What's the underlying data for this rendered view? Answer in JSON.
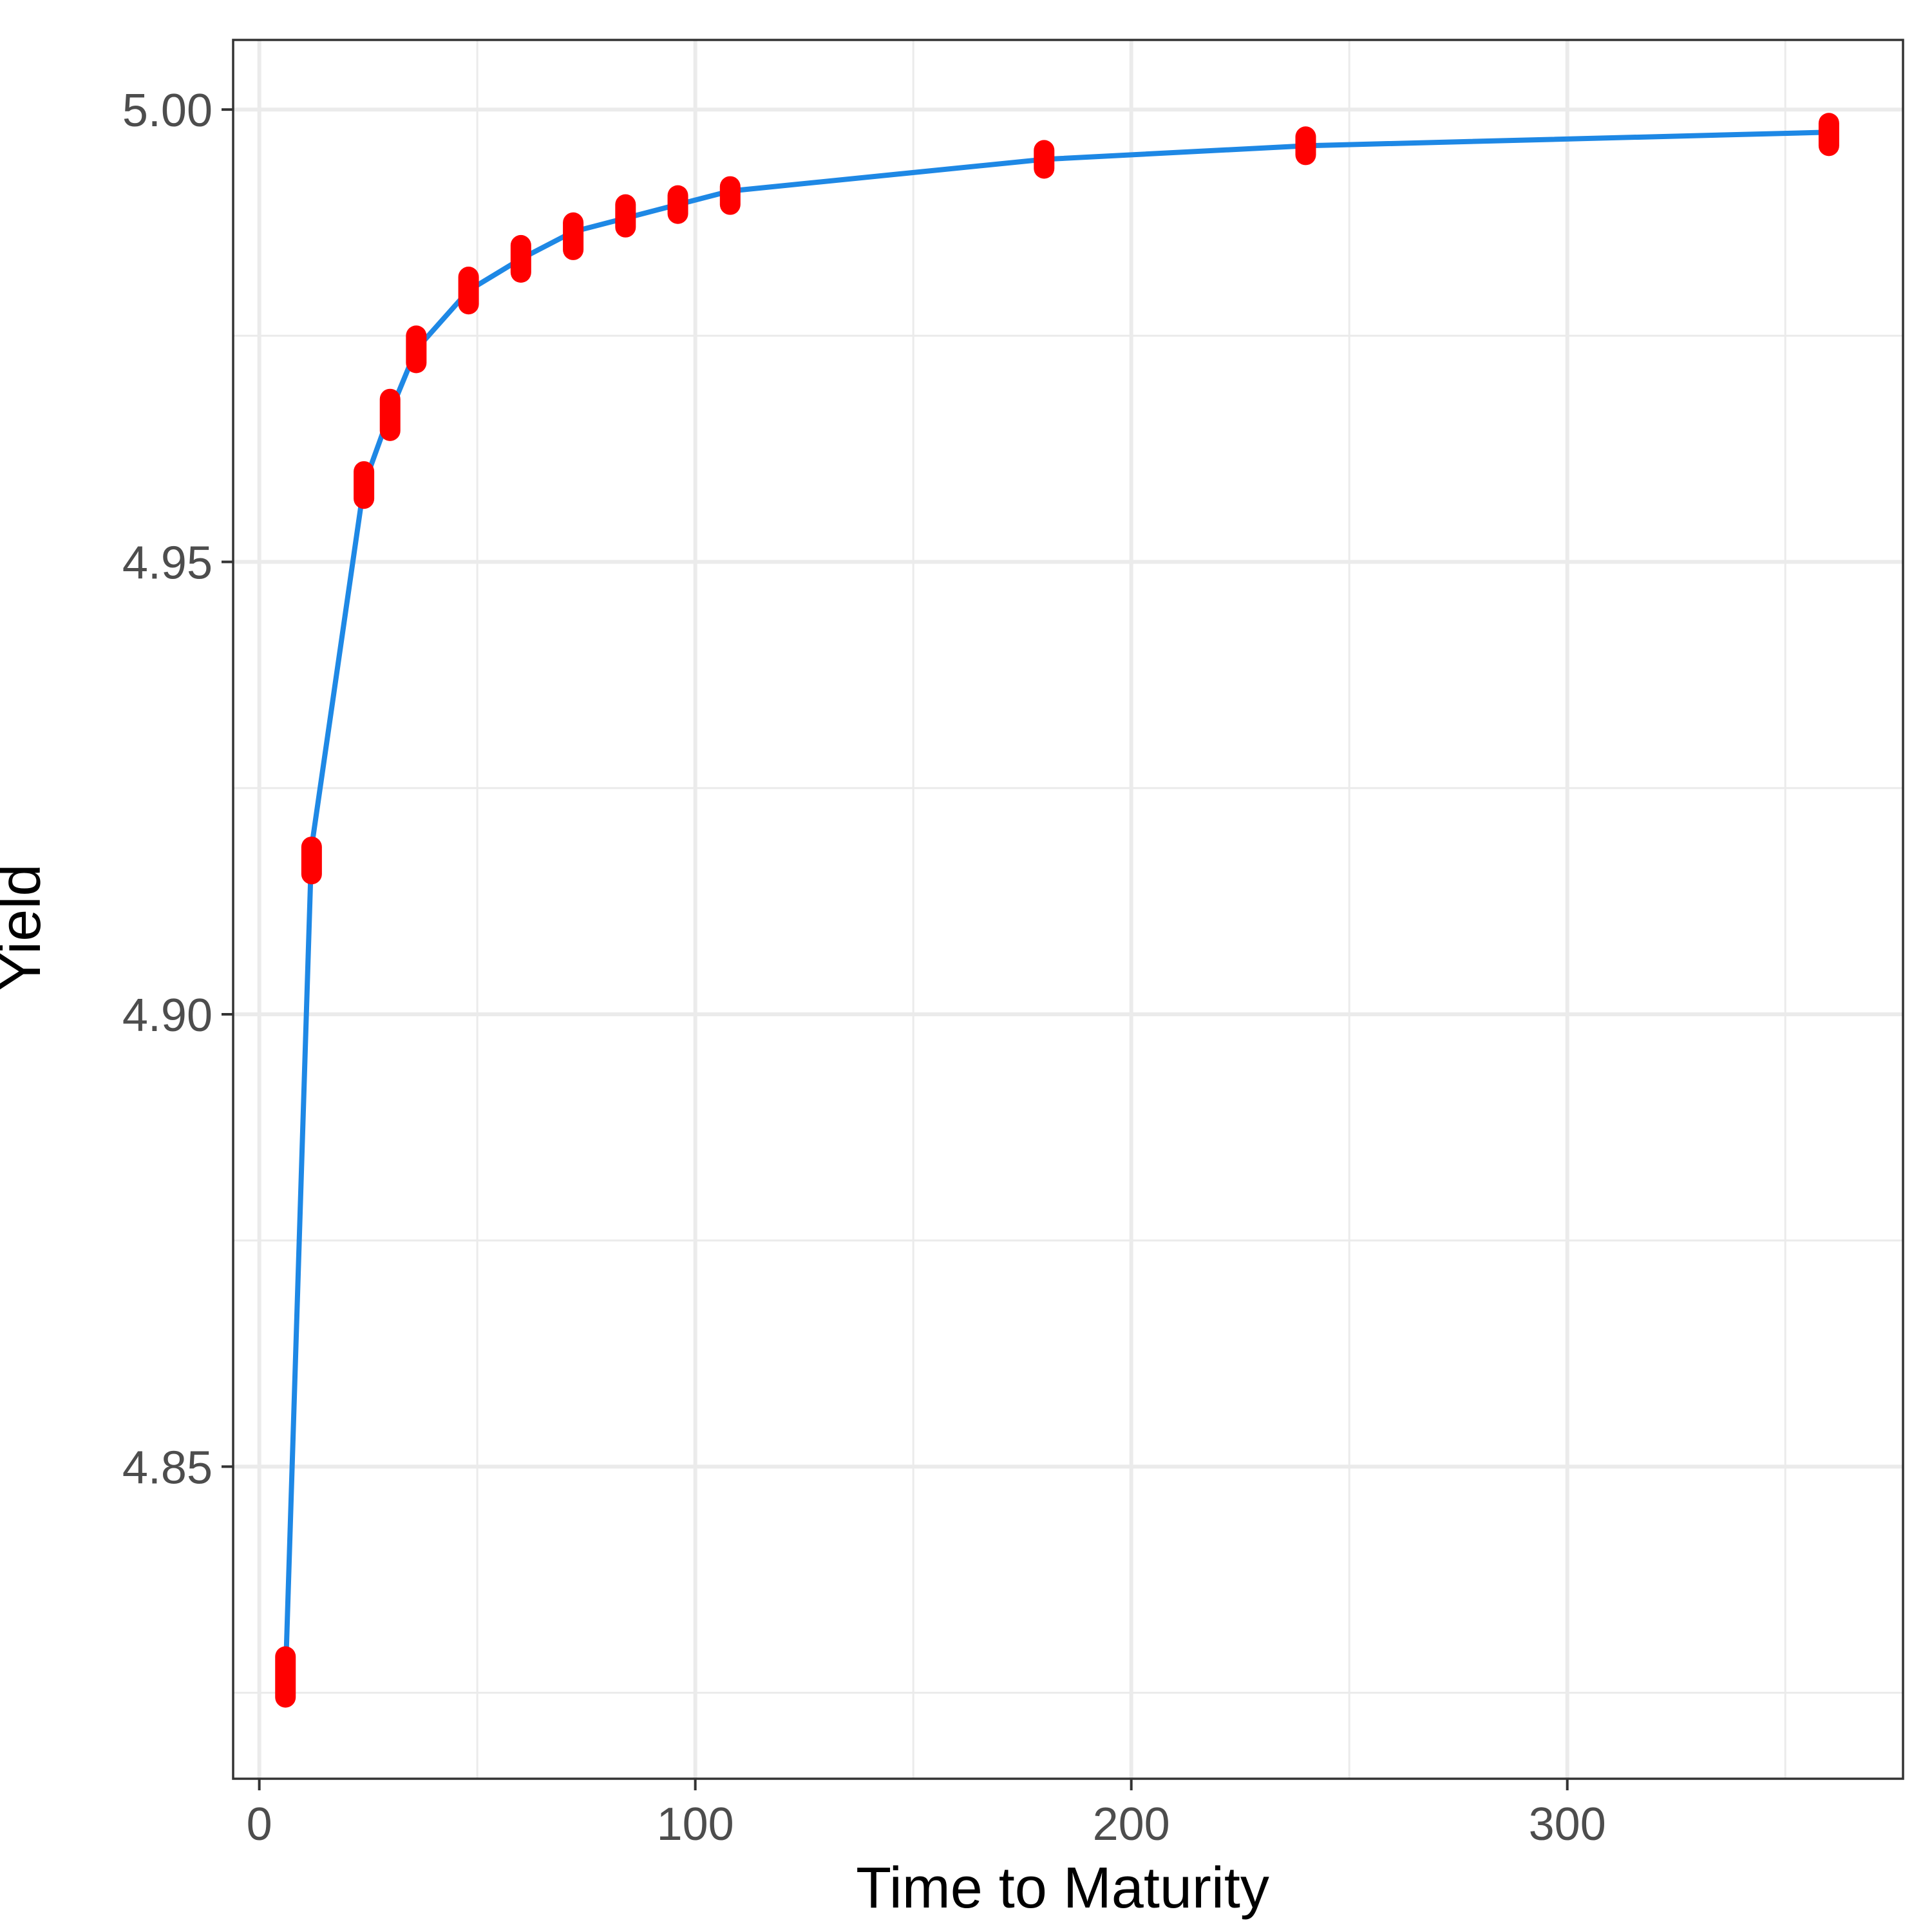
{
  "chart_data": {
    "type": "line",
    "title": "",
    "xlabel": "Time to Maturity",
    "ylabel": "Yield",
    "xlim": [
      -6,
      377
    ],
    "ylim": [
      4.8155,
      5.0077
    ],
    "x_ticks": [
      0,
      100,
      200,
      300
    ],
    "x_tick_labels": [
      "0",
      "100",
      "200",
      "300"
    ],
    "y_ticks": [
      4.85,
      4.9,
      4.95,
      5.0
    ],
    "y_tick_labels": [
      "4.85",
      "4.90",
      "4.95",
      "5.00"
    ],
    "grid": true,
    "line_color": "#1E88E5",
    "point_color": "#FF0000",
    "series": [
      {
        "type": "line",
        "x": [
          6,
          12,
          24,
          30,
          36,
          48,
          60,
          72,
          84,
          96,
          108,
          180,
          240,
          360
        ],
        "values": [
          4.8265,
          4.9185,
          4.9585,
          4.9665,
          4.9735,
          4.98,
          4.9835,
          4.9865,
          4.988,
          4.9895,
          4.991,
          4.9945,
          4.996,
          4.9975
        ]
      },
      {
        "type": "points",
        "x": [
          6,
          12,
          24,
          30,
          36,
          48,
          60,
          72,
          84,
          96,
          108,
          180,
          240,
          360
        ],
        "y_min": [
          4.8245,
          4.9155,
          4.957,
          4.9645,
          4.972,
          4.9785,
          4.982,
          4.9845,
          4.987,
          4.9885,
          4.9895,
          4.9935,
          4.995,
          4.996
        ],
        "y_max": [
          4.829,
          4.9185,
          4.96,
          4.968,
          4.975,
          4.9815,
          4.985,
          4.9875,
          4.9895,
          4.9905,
          4.9915,
          4.9955,
          4.997,
          4.9985
        ]
      }
    ]
  }
}
